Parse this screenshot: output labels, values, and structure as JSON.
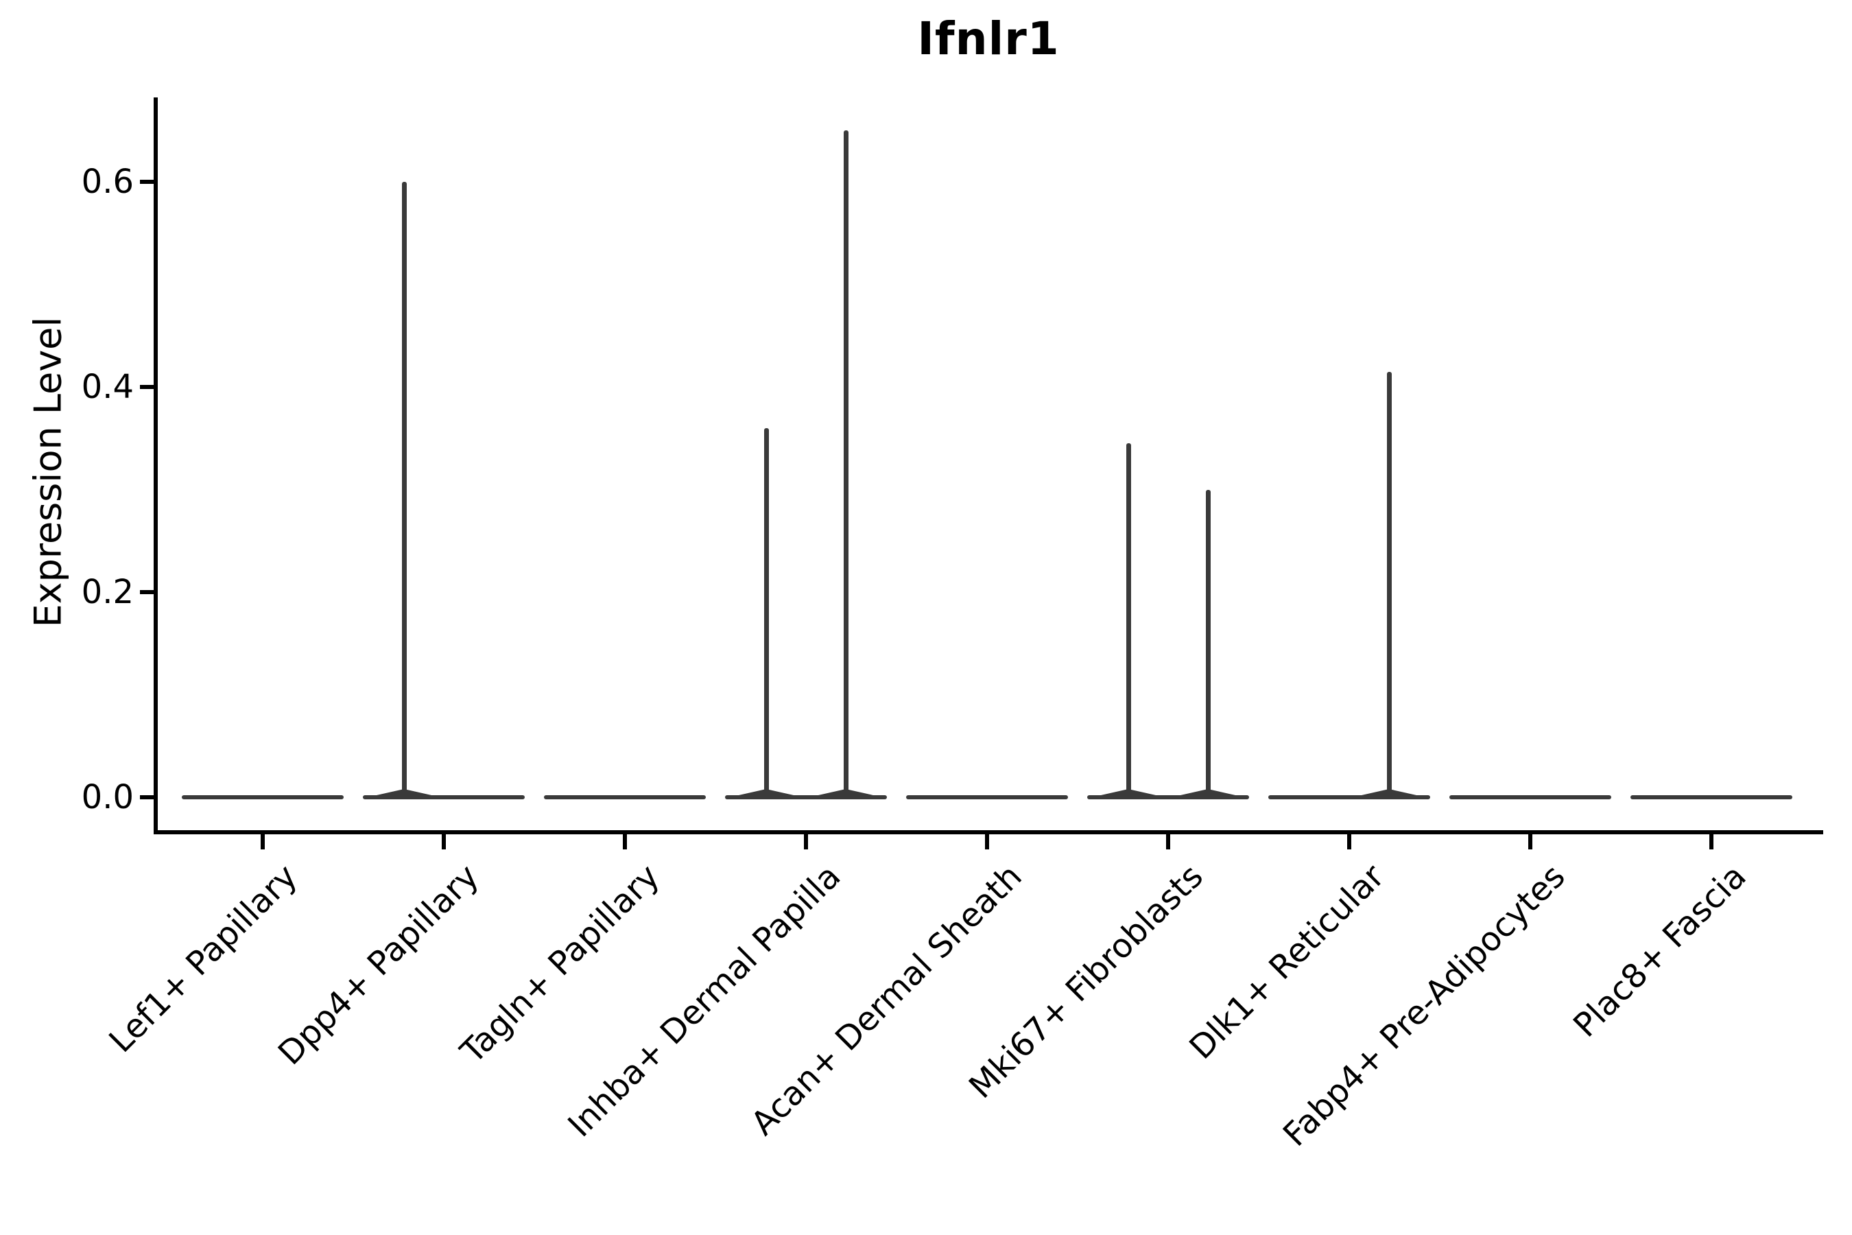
{
  "title": "Ifnlr1",
  "y_axis": {
    "label": "Expression Level",
    "ticks": [
      "0.0",
      "0.2",
      "0.4",
      "0.6"
    ]
  },
  "x_axis": {
    "labels": [
      "Lef1+ Papillary",
      "Dpp4+ Papillary",
      "Tagln+ Papillary",
      "Inhba+ Dermal Papilla",
      "Acan+ Dermal Sheath",
      "Mki67+ Fibroblasts",
      "Dlk1+ Reticular",
      "Fabp4+ Pre-Adipocytes",
      "Plac8+ Fascia"
    ],
    "rotation_degrees": 45
  },
  "chart_data": {
    "type": "violin",
    "title": "Ifnlr1",
    "xlabel": "",
    "ylabel": "Expression Level",
    "categories": [
      "Lef1+ Papillary",
      "Dpp4+ Papillary",
      "Tagln+ Papillary",
      "Inhba+ Dermal Papilla",
      "Acan+ Dermal Sheath",
      "Mki67+ Fibroblasts",
      "Dlk1+ Reticular",
      "Fabp4+ Pre-Adipocytes",
      "Plac8+ Fascia"
    ],
    "yticks": [
      0.0,
      0.2,
      0.4,
      0.6
    ],
    "ytick_labels": [
      "0.0",
      "0.2",
      "0.4",
      "0.6"
    ],
    "ylim": [
      -0.033,
      0.683
    ],
    "grid": false,
    "legend": null,
    "baseline_value": 0.0,
    "groups_per_category": 2,
    "violin_color": "#3a3a3a",
    "axis_color": "#000000",
    "background_color": "#ffffff",
    "series": [
      {
        "category": "Lef1+ Papillary",
        "spikes": []
      },
      {
        "category": "Dpp4+ Papillary",
        "spikes": [
          {
            "position": "left",
            "max": 0.6
          }
        ]
      },
      {
        "category": "Tagln+ Papillary",
        "spikes": []
      },
      {
        "category": "Inhba+ Dermal Papilla",
        "spikes": [
          {
            "position": "left",
            "max": 0.36
          },
          {
            "position": "right",
            "max": 0.65
          }
        ]
      },
      {
        "category": "Acan+ Dermal Sheath",
        "spikes": []
      },
      {
        "category": "Mki67+ Fibroblasts",
        "spikes": [
          {
            "position": "left",
            "max": 0.345
          },
          {
            "position": "right",
            "max": 0.3
          }
        ]
      },
      {
        "category": "Dlk1+ Reticular",
        "spikes": [
          {
            "position": "right",
            "max": 0.415
          }
        ]
      },
      {
        "category": "Fabp4+ Pre-Adipocytes",
        "spikes": []
      },
      {
        "category": "Plac8+ Fascia",
        "spikes": []
      }
    ]
  }
}
